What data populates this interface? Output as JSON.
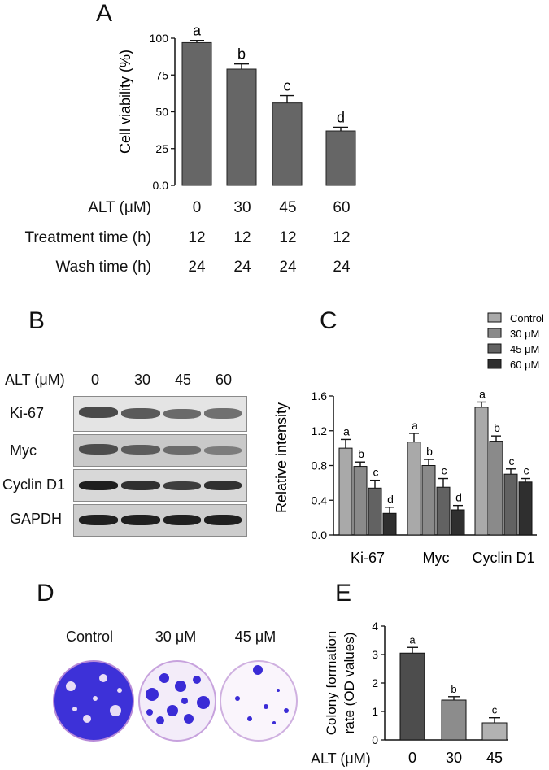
{
  "panels": {
    "a": "A",
    "b": "B",
    "c": "C",
    "d": "D",
    "e": "E"
  },
  "colors": {
    "panel_a_bar": "#666666",
    "stain": "#3a2bd6",
    "stain_edge": "#c07bd0"
  },
  "panel_a": {
    "row_labels": [
      "ALT (μM)",
      "Treatment time (h)",
      "Wash time (h)"
    ],
    "rows": [
      [
        "0",
        "30",
        "45",
        "60"
      ],
      [
        "12",
        "12",
        "12",
        "12"
      ],
      [
        "24",
        "24",
        "24",
        "24"
      ]
    ]
  },
  "panel_b": {
    "header_label": "ALT (μM)",
    "header_values": [
      "0",
      "30",
      "45",
      "60"
    ],
    "blots": [
      "Ki-67",
      "Myc",
      "Cyclin D1",
      "GAPDH"
    ]
  },
  "panel_d": {
    "labels": [
      "Control",
      "30 μM",
      "45 μM"
    ]
  },
  "panel_e": {
    "xlabel_prefix": "ALT (μM)"
  },
  "chart_data": [
    {
      "id": "A",
      "type": "bar",
      "categories": [
        "0",
        "30",
        "45",
        "60"
      ],
      "values": [
        97,
        79,
        56,
        37
      ],
      "errors": [
        1.5,
        3.5,
        5,
        2.5
      ],
      "annotations": [
        "a",
        "b",
        "c",
        "d"
      ],
      "ylabel": "Cell viability (%)",
      "ylim": [
        0,
        100
      ],
      "yticks": [
        "0.0",
        "25",
        "50",
        "75",
        "100"
      ],
      "ytick_values": [
        0,
        25,
        50,
        75,
        100
      ]
    },
    {
      "id": "C",
      "type": "bar",
      "categories": [
        "Ki-67",
        "Myc",
        "Cyclin D1"
      ],
      "series": [
        {
          "name": "Control",
          "color": "#a9a9a9",
          "values": [
            1.0,
            1.07,
            1.47
          ],
          "errors": [
            0.1,
            0.1,
            0.06
          ],
          "annotations": [
            "a",
            "a",
            "a"
          ]
        },
        {
          "name": "30 μM",
          "color": "#8a8a8a",
          "values": [
            0.79,
            0.8,
            1.08
          ],
          "errors": [
            0.05,
            0.07,
            0.06
          ],
          "annotations": [
            "b",
            "b",
            "b"
          ]
        },
        {
          "name": "45 μM",
          "color": "#626262",
          "values": [
            0.54,
            0.55,
            0.7
          ],
          "errors": [
            0.09,
            0.1,
            0.06
          ],
          "annotations": [
            "c",
            "c",
            "c"
          ]
        },
        {
          "name": "60 μM",
          "color": "#2f2f2f",
          "values": [
            0.25,
            0.29,
            0.61
          ],
          "errors": [
            0.07,
            0.05,
            0.04
          ],
          "annotations": [
            "d",
            "d",
            "c"
          ]
        }
      ],
      "ylabel": "Relative intensity",
      "ylim": [
        0,
        1.6
      ],
      "yticks": [
        "0.0",
        "0.4",
        "0.8",
        "1.2",
        "1.6"
      ],
      "ytick_values": [
        0,
        0.4,
        0.8,
        1.2,
        1.6
      ],
      "legend_position": "top-right"
    },
    {
      "id": "E",
      "type": "bar",
      "categories": [
        "0",
        "30",
        "45"
      ],
      "values": [
        3.05,
        1.4,
        0.6
      ],
      "errors": [
        0.2,
        0.12,
        0.18
      ],
      "annotations": [
        "a",
        "b",
        "c"
      ],
      "colors": [
        "#4d4d4d",
        "#8c8c8c",
        "#b2b2b2"
      ],
      "ylabel": "Colony formation rate (OD values)",
      "ylabel_lines": [
        "Colony formation",
        "rate (OD values)"
      ],
      "ylim": [
        0,
        4
      ],
      "yticks": [
        "0",
        "1",
        "2",
        "3",
        "4"
      ],
      "ytick_values": [
        0,
        1,
        2,
        3,
        4
      ]
    }
  ]
}
